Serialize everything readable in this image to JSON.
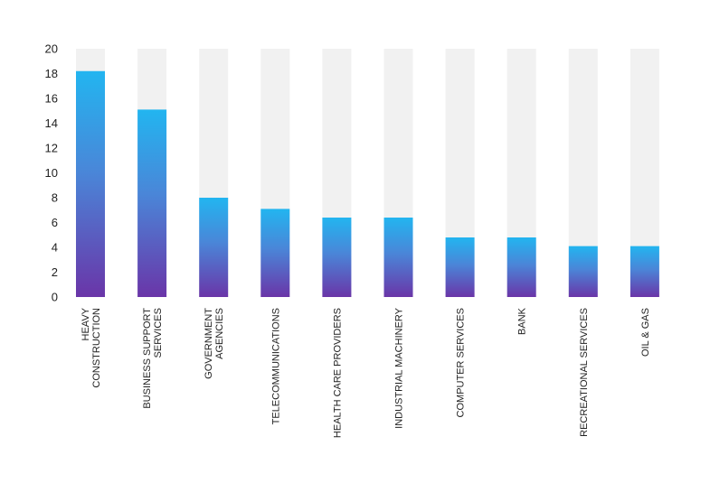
{
  "chart_data": {
    "type": "bar",
    "categories": [
      [
        "HEAVY",
        "CONSTRUCTION"
      ],
      [
        "BUSINESS SUPPORT",
        "SERVICES"
      ],
      [
        "GOVERNMENT",
        "AGENCIES"
      ],
      [
        "TELECOMMUNICATIONS"
      ],
      [
        "HEALTH CARE PROVIDERS"
      ],
      [
        "INDUSTRIAL MACHINERY"
      ],
      [
        "COMPUTER SERVICES"
      ],
      [
        "BANK"
      ],
      [
        "RECREATIONAL SERVICES"
      ],
      [
        "OIL & GAS"
      ]
    ],
    "values": [
      18.2,
      15.1,
      8.0,
      7.1,
      6.4,
      6.4,
      4.8,
      4.8,
      4.1,
      4.1
    ],
    "ylim": [
      0,
      20
    ],
    "yticks": [
      0,
      2,
      4,
      6,
      8,
      10,
      12,
      14,
      16,
      18,
      20
    ],
    "grid": false,
    "legend": "none",
    "colors": {
      "bar_top": "#22b5f0",
      "bar_mid": "#4a86d8",
      "bar_bottom": "#6a35a8",
      "track": "#f1f1f1",
      "text": "#222222"
    }
  }
}
